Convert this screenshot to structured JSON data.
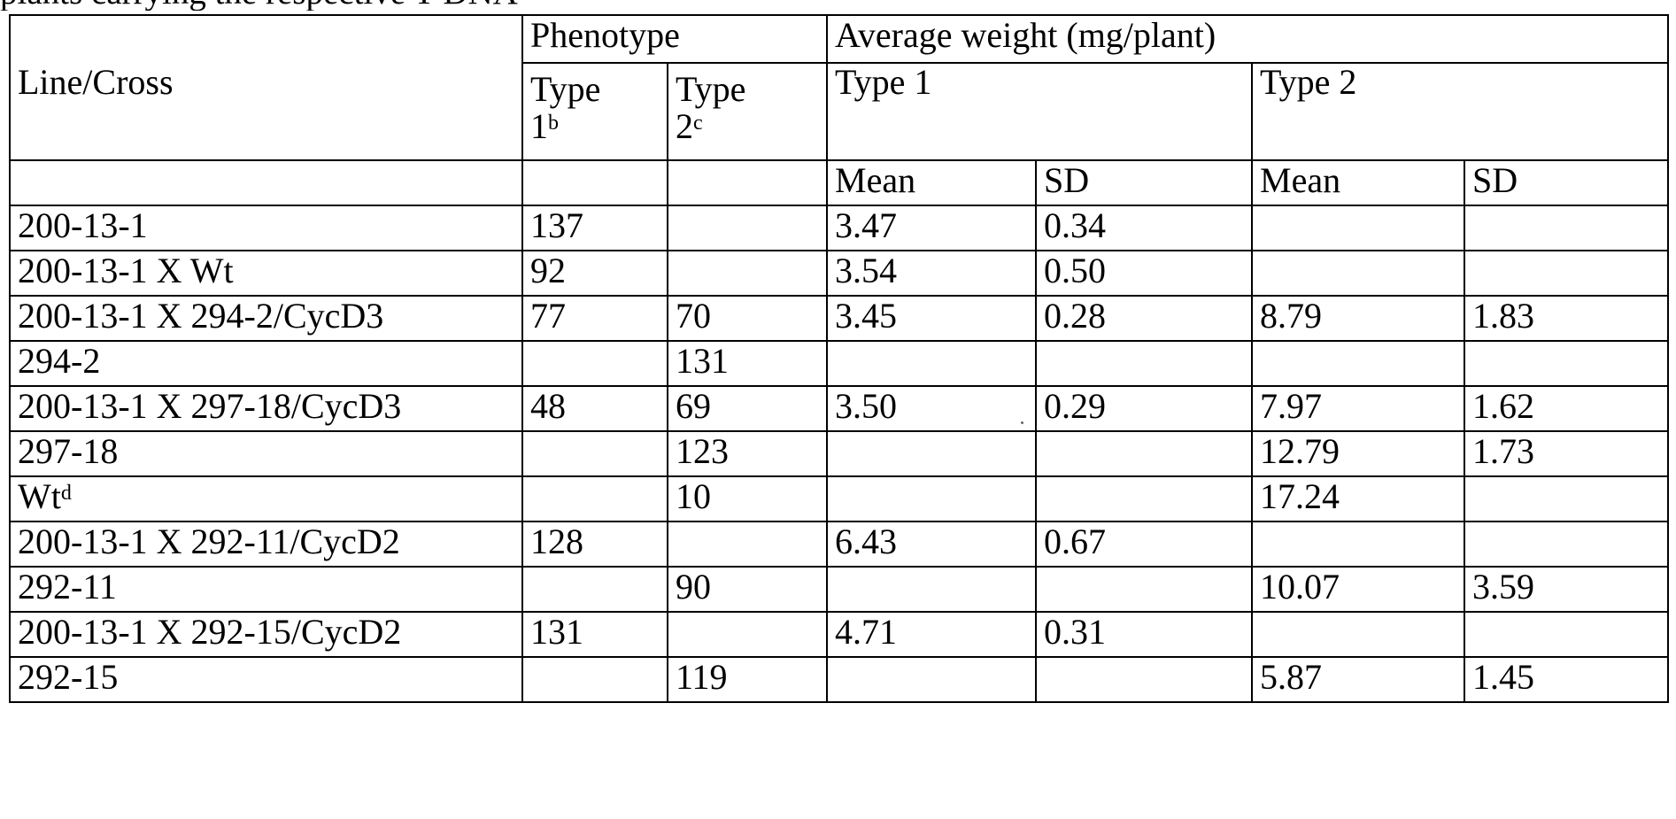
{
  "caption_partial": "plants carrying the respective T-DNA",
  "headers": {
    "line_cross": "Line/Cross",
    "phenotype": "Phenotype",
    "average_weight": "Average weight (mg/plant)",
    "type1_short": "Type",
    "type1_num": "1",
    "type1_sup": "b",
    "type2_short": "Type",
    "type2_num": "2",
    "type2_sup": "c",
    "type1": "Type 1",
    "type2": "Type 2",
    "mean": "Mean",
    "sd": "SD",
    "mean2": "Mean",
    "sd2": "SD"
  },
  "rows": [
    {
      "line": "200-13-1",
      "sup": "",
      "p1": "137",
      "p2": "",
      "m1": "3.47",
      "s1": "0.34",
      "m2": "",
      "s2": ""
    },
    {
      "line": "200-13-1 X Wt",
      "sup": "",
      "p1": "92",
      "p2": "",
      "m1": "3.54",
      "s1": "0.50",
      "m2": "",
      "s2": ""
    },
    {
      "line": "200-13-1 X 294-2/CycD3",
      "sup": "",
      "p1": "77",
      "p2": "70",
      "m1": "3.45",
      "s1": "0.28",
      "m2": "8.79",
      "s2": "1.83"
    },
    {
      "line": "294-2",
      "sup": "",
      "p1": "",
      "p2": "131",
      "m1": "",
      "s1": "",
      "m2": "",
      "s2": ""
    },
    {
      "line": "200-13-1 X 297-18/CycD3",
      "sup": "",
      "p1": "48",
      "p2": "69",
      "m1": "3.50",
      "s1": "0.29",
      "m2": "7.97",
      "s2": "1.62"
    },
    {
      "line": "297-18",
      "sup": "",
      "p1": "",
      "p2": "123",
      "m1": "",
      "s1": "",
      "m2": "12.79",
      "s2": "1.73"
    },
    {
      "line": "Wt",
      "sup": "d",
      "p1": "",
      "p2": "10",
      "m1": "",
      "s1": "",
      "m2": "17.24",
      "s2": ""
    },
    {
      "line": "200-13-1 X 292-11/CycD2",
      "sup": "",
      "p1": "128",
      "p2": "",
      "m1": "6.43",
      "s1": "0.67",
      "m2": "",
      "s2": ""
    },
    {
      "line": "292-11",
      "sup": "",
      "p1": "",
      "p2": "90",
      "m1": "",
      "s1": "",
      "m2": "10.07",
      "s2": "3.59"
    },
    {
      "line": "200-13-1 X 292-15/CycD2",
      "sup": "",
      "p1": "131",
      "p2": "",
      "m1": "4.71",
      "s1": "0.31",
      "m2": "",
      "s2": ""
    },
    {
      "line": "292-15",
      "sup": "",
      "p1": "",
      "p2": "119",
      "m1": "",
      "s1": "",
      "m2": "5.87",
      "s2": "1.45"
    }
  ]
}
